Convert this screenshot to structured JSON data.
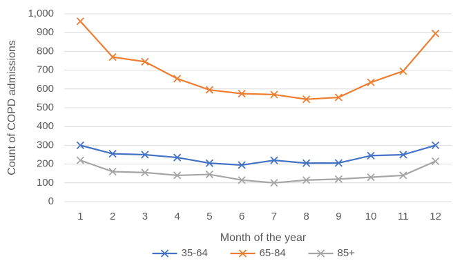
{
  "chart_data": {
    "type": "line",
    "x_label": "Month of the year",
    "y_label": "Count of COPD admissions",
    "x": [
      1,
      2,
      3,
      4,
      5,
      6,
      7,
      8,
      9,
      10,
      11,
      12
    ],
    "xlim": [
      0.5,
      12.5
    ],
    "xticks": [
      1,
      2,
      3,
      4,
      5,
      6,
      7,
      8,
      9,
      10,
      11,
      12
    ],
    "ylim": [
      0,
      1000
    ],
    "yticks": [
      0,
      100,
      200,
      300,
      400,
      500,
      600,
      700,
      800,
      900,
      {
        "value": 1000,
        "label": "1,000"
      }
    ],
    "grid": true,
    "legend": "bottom",
    "series": [
      {
        "name": "35-64",
        "color": "#4472c4",
        "values": [
          300,
          255,
          250,
          235,
          205,
          195,
          220,
          205,
          206,
          245,
          250,
          300
        ]
      },
      {
        "name": "65-84",
        "color": "#ed7d31",
        "values": [
          960,
          770,
          745,
          655,
          595,
          575,
          570,
          545,
          555,
          635,
          695,
          895
        ]
      },
      {
        "name": "85+",
        "color": "#a5a5a5",
        "values": [
          220,
          160,
          155,
          140,
          145,
          115,
          100,
          115,
          120,
          130,
          140,
          215
        ]
      }
    ]
  }
}
